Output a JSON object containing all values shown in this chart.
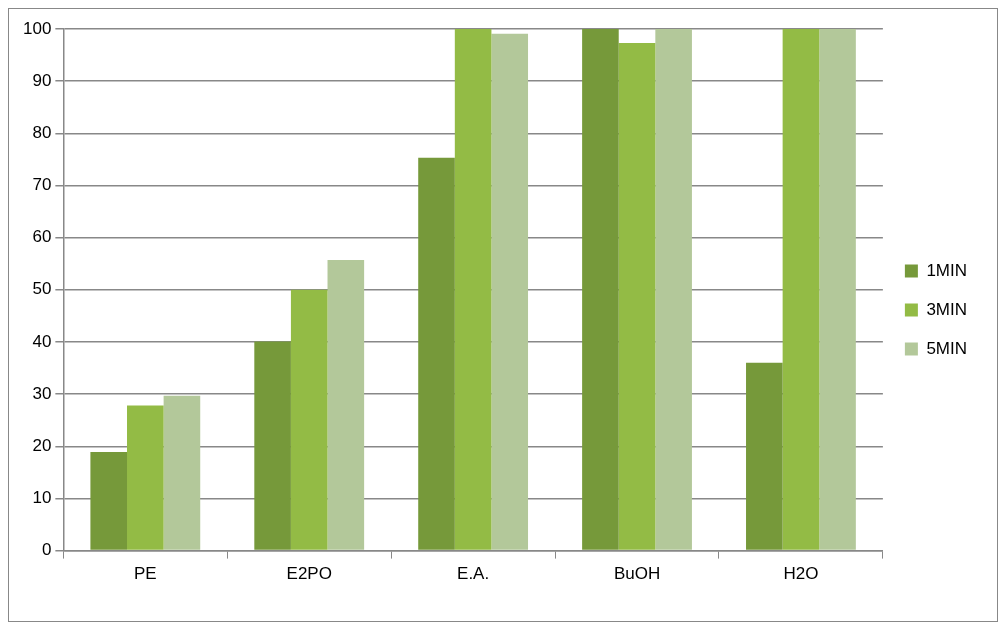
{
  "chart_data": {
    "type": "bar",
    "categories": [
      "PE",
      "E2PO",
      "E.A.",
      "BuOH",
      "H2O"
    ],
    "series": [
      {
        "name": "1MIN",
        "color": "#76993a",
        "values": [
          18.9,
          40.1,
          75.3,
          100,
          36.0
        ]
      },
      {
        "name": "3MIN",
        "color": "#93bb45",
        "values": [
          27.8,
          50.0,
          100,
          97.3,
          100
        ]
      },
      {
        "name": "5MIN",
        "color": "#b3c89a",
        "values": [
          29.7,
          55.7,
          99.1,
          100,
          100
        ]
      }
    ],
    "ylim": [
      0,
      100
    ],
    "yticks": [
      0,
      10,
      20,
      30,
      40,
      50,
      60,
      70,
      80,
      90,
      100
    ],
    "grid": "y",
    "legend": "right"
  }
}
